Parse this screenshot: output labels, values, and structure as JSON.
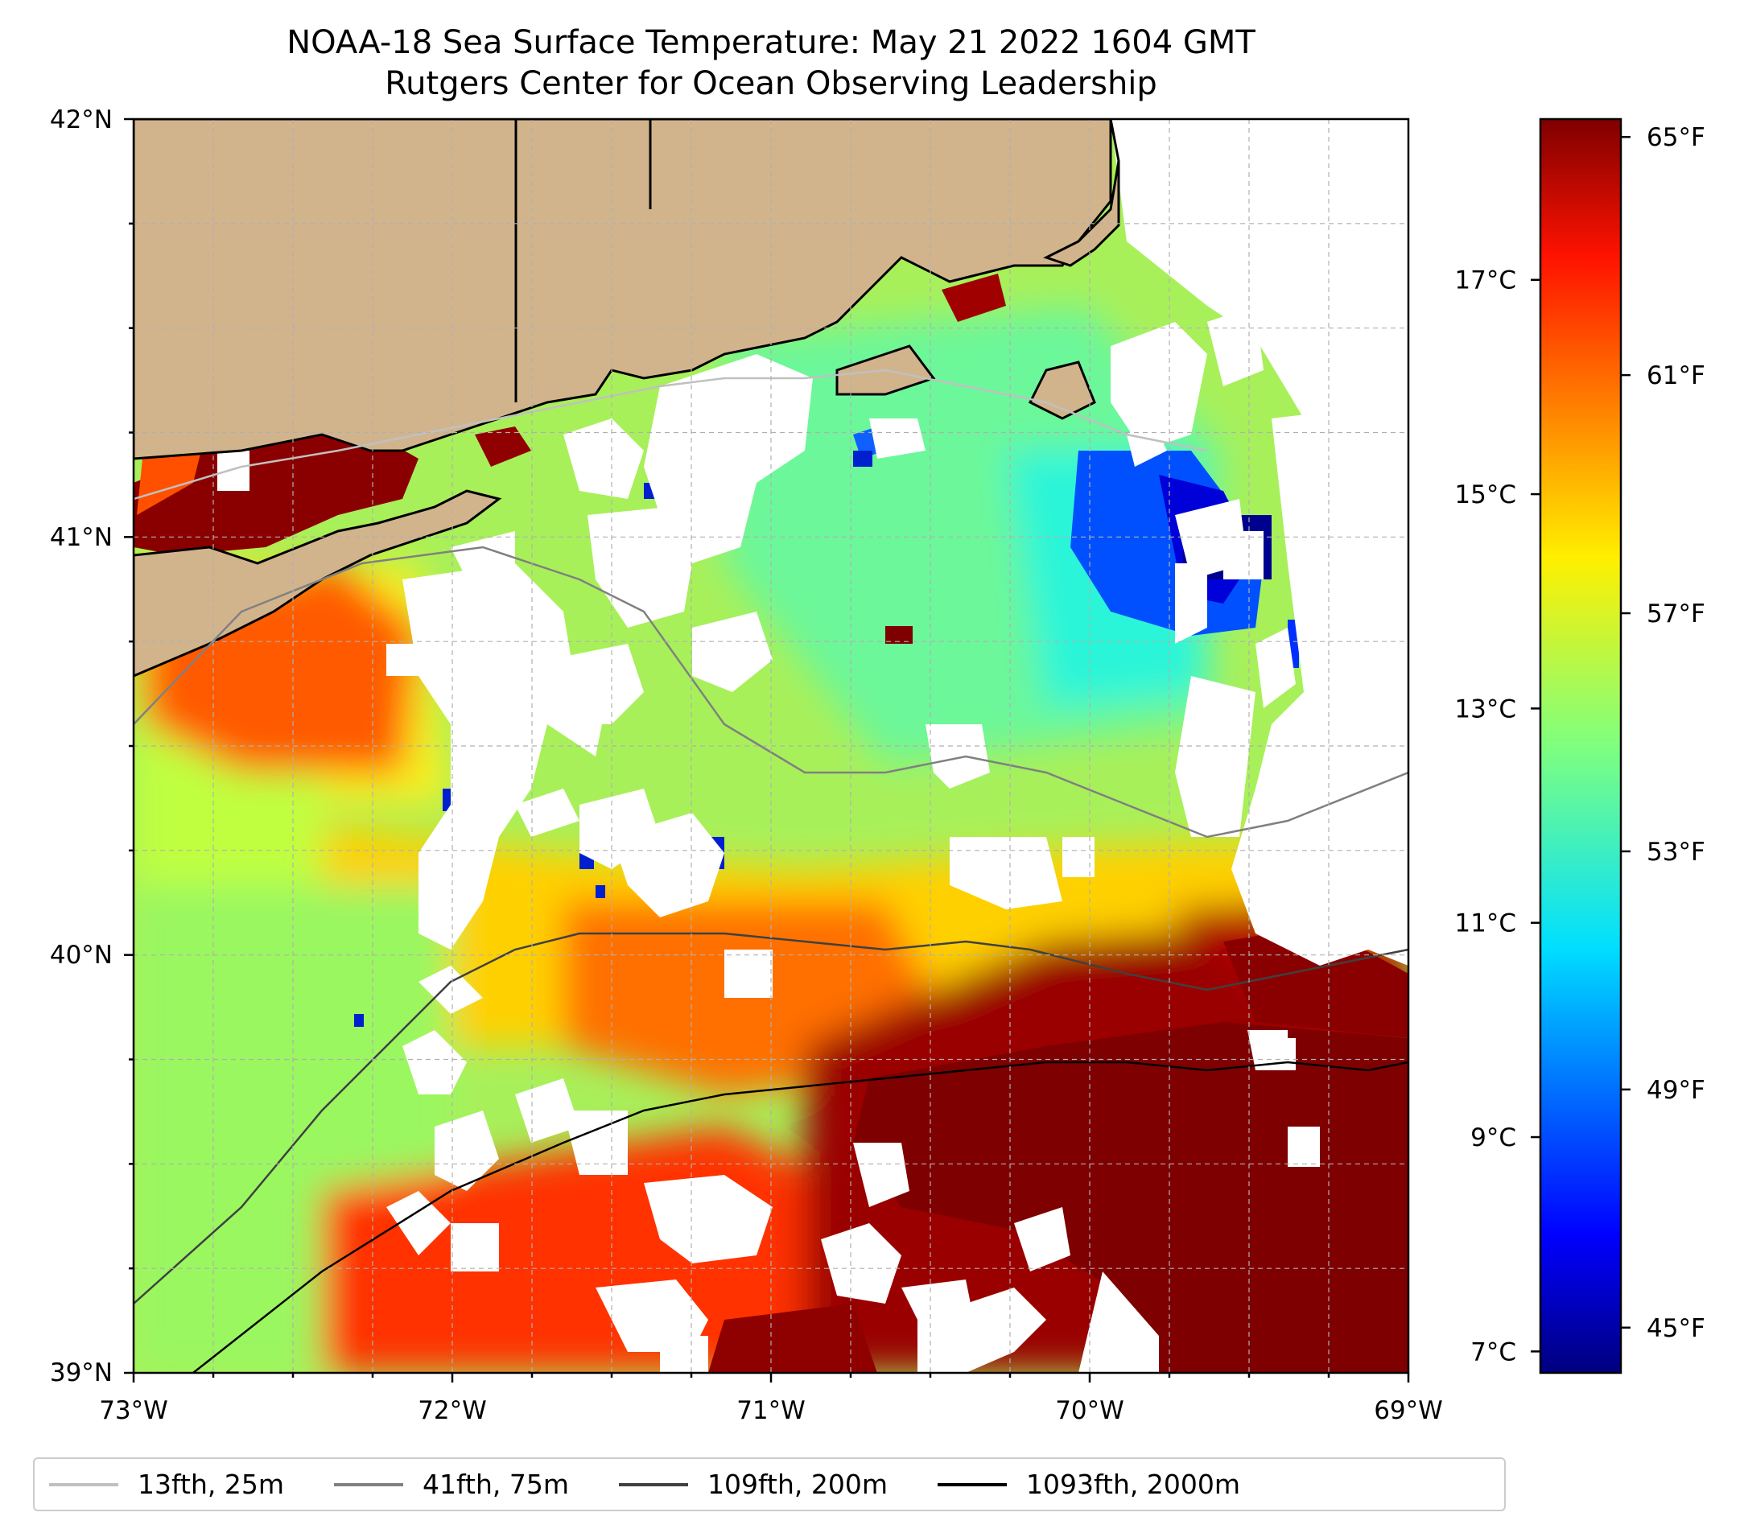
{
  "title": {
    "line1": "NOAA-18 Sea Surface Temperature: May 21 2022 1604 GMT",
    "line2": "Rutgers Center for Ocean Observing Leadership"
  },
  "colors": {
    "land": "#d2b48c",
    "warm": "#7f0000",
    "cold": "#00008f",
    "isobath_25": "#c0c0c0",
    "isobath_75": "#808080",
    "isobath_200": "#404040",
    "isobath_2000": "#000000",
    "cloud_mask": "#ffffff"
  },
  "chart_data": {
    "type": "heatmap",
    "variable": "Sea Surface Temperature",
    "x_ticks": [
      "73°W",
      "72°W",
      "71°W",
      "70°W",
      "69°W"
    ],
    "y_ticks": [
      "42°N",
      "41°N",
      "40°N",
      "39°N"
    ],
    "xlim": [
      -73,
      -69
    ],
    "ylim": [
      39,
      42
    ],
    "grid": true,
    "colorbar": {
      "colormap": "jet",
      "range_c": [
        6.8,
        18.5
      ],
      "celsius_ticks": [
        {
          "value": 7,
          "label": "7°C"
        },
        {
          "value": 9,
          "label": "9°C"
        },
        {
          "value": 11,
          "label": "11°C"
        },
        {
          "value": 13,
          "label": "13°C"
        },
        {
          "value": 15,
          "label": "15°C"
        },
        {
          "value": 17,
          "label": "17°C"
        }
      ],
      "fahrenheit_ticks": [
        {
          "value": 45,
          "label": "45°F"
        },
        {
          "value": 49,
          "label": "49°F"
        },
        {
          "value": 53,
          "label": "53°F"
        },
        {
          "value": 57,
          "label": "57°F"
        },
        {
          "value": 61,
          "label": "61°F"
        },
        {
          "value": 65,
          "label": "65°F"
        }
      ]
    },
    "legend": {
      "position": "bottom",
      "entries": [
        {
          "label": "13fth, 25m",
          "color": "#c0c0c0"
        },
        {
          "label": "41fth, 75m",
          "color": "#808080"
        },
        {
          "label": "109fth, 200m",
          "color": "#404040"
        },
        {
          "label": "1093fth, 2000m",
          "color": "#000000"
        }
      ]
    }
  }
}
